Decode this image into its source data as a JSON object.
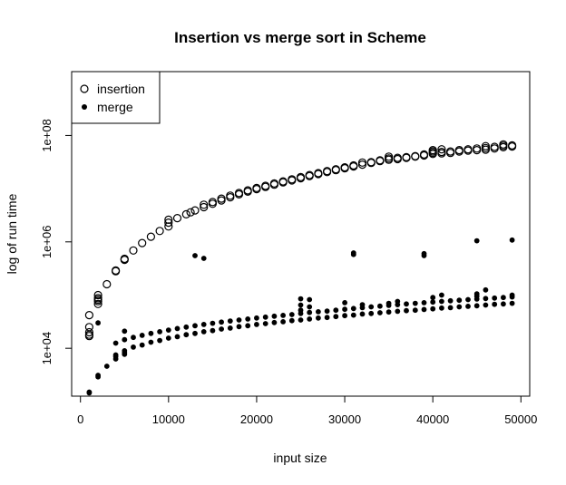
{
  "chart_data": {
    "type": "scatter",
    "title": "Insertion vs merge sort in Scheme",
    "xlabel": "input size",
    "ylabel": "log of run time",
    "xlim": [
      -1000,
      51000
    ],
    "ylim_log10": [
      3.1,
      9.2
    ],
    "y_scale": "log",
    "x_ticks": [
      0,
      10000,
      20000,
      30000,
      40000,
      50000
    ],
    "x_tick_labels": [
      "0",
      "10000",
      "20000",
      "30000",
      "40000",
      "50000"
    ],
    "y_ticks": [
      10000,
      1000000,
      100000000
    ],
    "y_tick_labels": [
      "1e+04",
      "1e+06",
      "1e+08"
    ],
    "grid": false,
    "legend_position": "top-left",
    "series": [
      {
        "name": "insertion",
        "marker": "open-circle",
        "points": [
          [
            1000,
            17000
          ],
          [
            1000,
            18000
          ],
          [
            1000,
            20000
          ],
          [
            1000,
            25000
          ],
          [
            1000,
            42000
          ],
          [
            2000,
            68000
          ],
          [
            2000,
            77000
          ],
          [
            2000,
            82000
          ],
          [
            2000,
            88000
          ],
          [
            2000,
            100000
          ],
          [
            3000,
            160000
          ],
          [
            4000,
            280000
          ],
          [
            4000,
            290000
          ],
          [
            5000,
            460000
          ],
          [
            5000,
            480000
          ],
          [
            6000,
            690000
          ],
          [
            7000,
            950000
          ],
          [
            8000,
            1250000
          ],
          [
            9000,
            1600000
          ],
          [
            10000,
            1950000
          ],
          [
            10000,
            2300000
          ],
          [
            10000,
            2600000
          ],
          [
            11000,
            2800000
          ],
          [
            12000,
            3300000
          ],
          [
            12500,
            3600000
          ],
          [
            13000,
            3900000
          ],
          [
            14000,
            4500000
          ],
          [
            14000,
            5000000
          ],
          [
            15000,
            5200000
          ],
          [
            15000,
            5600000
          ],
          [
            16000,
            6000000
          ],
          [
            16000,
            6500000
          ],
          [
            17000,
            6900000
          ],
          [
            17000,
            7400000
          ],
          [
            18000,
            7800000
          ],
          [
            18000,
            8300000
          ],
          [
            19000,
            8800000
          ],
          [
            19000,
            9300000
          ],
          [
            20000,
            9800000
          ],
          [
            20000,
            10300000
          ],
          [
            21000,
            10800000
          ],
          [
            21000,
            11300000
          ],
          [
            22000,
            11900000
          ],
          [
            22000,
            12500000
          ],
          [
            23000,
            13100000
          ],
          [
            23000,
            13700000
          ],
          [
            24000,
            14300000
          ],
          [
            24000,
            15000000
          ],
          [
            25000,
            15700000
          ],
          [
            25000,
            16500000
          ],
          [
            26000,
            17200000
          ],
          [
            26000,
            18000000
          ],
          [
            27000,
            18800000
          ],
          [
            27000,
            19600000
          ],
          [
            28000,
            20500000
          ],
          [
            28000,
            21400000
          ],
          [
            29000,
            22300000
          ],
          [
            29000,
            23200000
          ],
          [
            30000,
            24200000
          ],
          [
            30000,
            25200000
          ],
          [
            31000,
            26200000
          ],
          [
            31000,
            27300000
          ],
          [
            32000,
            28300000
          ],
          [
            32000,
            31000000
          ],
          [
            33000,
            30500000
          ],
          [
            33000,
            31500000
          ],
          [
            34000,
            33000000
          ],
          [
            34000,
            34000000
          ],
          [
            35000,
            35000000
          ],
          [
            35000,
            37000000
          ],
          [
            35000,
            40000000
          ],
          [
            36000,
            36000000
          ],
          [
            36000,
            38000000
          ],
          [
            37000,
            38000000
          ],
          [
            37000,
            39000000
          ],
          [
            38000,
            40000000
          ],
          [
            38000,
            41000000
          ],
          [
            39000,
            42000000
          ],
          [
            39000,
            44000000
          ],
          [
            40000,
            45000000
          ],
          [
            40000,
            47000000
          ],
          [
            40000,
            50000000
          ],
          [
            40000,
            53000000
          ],
          [
            41000,
            46000000
          ],
          [
            41000,
            49000000
          ],
          [
            41000,
            55000000
          ],
          [
            42000,
            47000000
          ],
          [
            42000,
            50000000
          ],
          [
            43000,
            50000000
          ],
          [
            43000,
            53000000
          ],
          [
            44000,
            52000000
          ],
          [
            44000,
            55000000
          ],
          [
            45000,
            53000000
          ],
          [
            45000,
            57000000
          ],
          [
            46000,
            54000000
          ],
          [
            46000,
            58000000
          ],
          [
            46000,
            63000000
          ],
          [
            47000,
            57000000
          ],
          [
            47000,
            61000000
          ],
          [
            48000,
            60000000
          ],
          [
            48000,
            64000000
          ],
          [
            48000,
            68000000
          ],
          [
            49000,
            62000000
          ],
          [
            49000,
            65000000
          ]
        ]
      },
      {
        "name": "merge",
        "marker": "filled-circle",
        "points": [
          [
            1000,
            1450
          ],
          [
            1000,
            1500
          ],
          [
            2000,
            2900
          ],
          [
            2000,
            3100
          ],
          [
            2000,
            30000
          ],
          [
            3000,
            4600
          ],
          [
            4000,
            6300
          ],
          [
            4000,
            7000
          ],
          [
            4000,
            7500
          ],
          [
            4000,
            12500
          ],
          [
            5000,
            7700
          ],
          [
            5000,
            8300
          ],
          [
            5000,
            9000
          ],
          [
            5000,
            14500
          ],
          [
            5000,
            21000
          ],
          [
            6000,
            10500
          ],
          [
            6000,
            16000
          ],
          [
            7000,
            11500
          ],
          [
            7000,
            17500
          ],
          [
            8000,
            13000
          ],
          [
            8000,
            19000
          ],
          [
            9000,
            14000
          ],
          [
            9000,
            20500
          ],
          [
            10000,
            15500
          ],
          [
            10000,
            22000
          ],
          [
            11000,
            16500
          ],
          [
            11000,
            23500
          ],
          [
            12000,
            18000
          ],
          [
            12000,
            25000
          ],
          [
            13000,
            19000
          ],
          [
            13000,
            26500
          ],
          [
            13000,
            550000
          ],
          [
            14000,
            20500
          ],
          [
            14000,
            28000
          ],
          [
            14000,
            490000
          ],
          [
            15000,
            21500
          ],
          [
            15000,
            29500
          ],
          [
            16000,
            23000
          ],
          [
            16000,
            31000
          ],
          [
            17000,
            24000
          ],
          [
            17000,
            32500
          ],
          [
            18000,
            25500
          ],
          [
            18000,
            34000
          ],
          [
            19000,
            26500
          ],
          [
            19000,
            35500
          ],
          [
            20000,
            28000
          ],
          [
            20000,
            37000
          ],
          [
            21000,
            29000
          ],
          [
            21000,
            38500
          ],
          [
            22000,
            30500
          ],
          [
            22000,
            40000
          ],
          [
            23000,
            31500
          ],
          [
            23000,
            41500
          ],
          [
            24000,
            33000
          ],
          [
            24000,
            43000
          ],
          [
            25000,
            34000
          ],
          [
            25000,
            45000
          ],
          [
            25000,
            52000
          ],
          [
            25000,
            65000
          ],
          [
            25000,
            85000
          ],
          [
            26000,
            35500
          ],
          [
            26000,
            47000
          ],
          [
            26000,
            60000
          ],
          [
            26000,
            82000
          ],
          [
            27000,
            37000
          ],
          [
            27000,
            48500
          ],
          [
            28000,
            38000
          ],
          [
            28000,
            50000
          ],
          [
            29000,
            39500
          ],
          [
            29000,
            52000
          ],
          [
            30000,
            41000
          ],
          [
            30000,
            54000
          ],
          [
            30000,
            72000
          ],
          [
            31000,
            42000
          ],
          [
            31000,
            56000
          ],
          [
            31000,
            580000
          ],
          [
            31000,
            620000
          ],
          [
            32000,
            44000
          ],
          [
            32000,
            58000
          ],
          [
            32000,
            66000
          ],
          [
            33000,
            45000
          ],
          [
            33000,
            60000
          ],
          [
            34000,
            46500
          ],
          [
            34000,
            62000
          ],
          [
            35000,
            48000
          ],
          [
            35000,
            64000
          ],
          [
            35000,
            70000
          ],
          [
            36000,
            49500
          ],
          [
            36000,
            66000
          ],
          [
            36000,
            76000
          ],
          [
            37000,
            51000
          ],
          [
            37000,
            68000
          ],
          [
            38000,
            52000
          ],
          [
            38000,
            70000
          ],
          [
            39000,
            53500
          ],
          [
            39000,
            72000
          ],
          [
            39000,
            550000
          ],
          [
            39000,
            600000
          ],
          [
            40000,
            55000
          ],
          [
            40000,
            74000
          ],
          [
            40000,
            90000
          ],
          [
            41000,
            57000
          ],
          [
            41000,
            76000
          ],
          [
            41000,
            100000
          ],
          [
            42000,
            58000
          ],
          [
            42000,
            78000
          ],
          [
            43000,
            60000
          ],
          [
            43000,
            80000
          ],
          [
            44000,
            61500
          ],
          [
            44000,
            82000
          ],
          [
            45000,
            63000
          ],
          [
            45000,
            84000
          ],
          [
            45000,
            95000
          ],
          [
            45000,
            105000
          ],
          [
            45000,
            1050000
          ],
          [
            46000,
            65000
          ],
          [
            46000,
            86000
          ],
          [
            46000,
            125000
          ],
          [
            47000,
            67000
          ],
          [
            47000,
            88000
          ],
          [
            48000,
            68000
          ],
          [
            48000,
            90000
          ],
          [
            49000,
            70000
          ],
          [
            49000,
            92000
          ],
          [
            49000,
            100000
          ],
          [
            49000,
            1080000
          ]
        ]
      }
    ]
  }
}
